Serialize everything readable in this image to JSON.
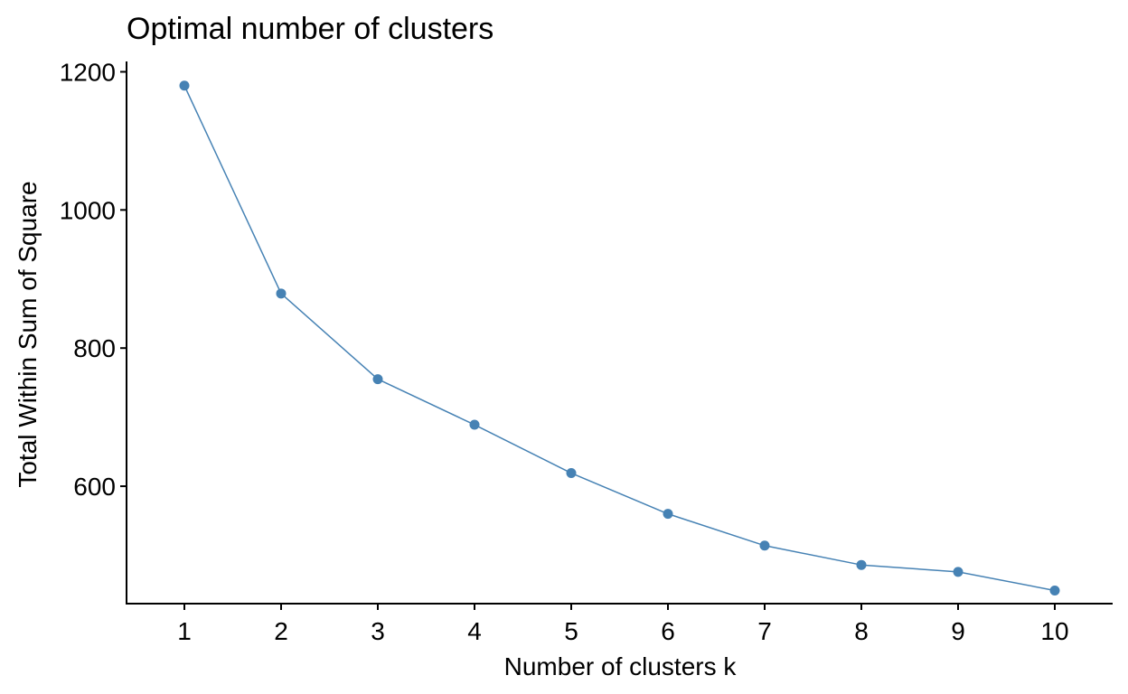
{
  "chart_data": {
    "type": "line",
    "title": "Optimal number of clusters",
    "xlabel": "Number of clusters k",
    "ylabel": "Total Within Sum of Square",
    "categories": [
      "1",
      "2",
      "3",
      "4",
      "5",
      "6",
      "7",
      "8",
      "9",
      "10"
    ],
    "series": [
      {
        "values": [
          1180,
          879,
          755,
          689,
          619,
          560,
          514,
          486,
          476,
          449
        ],
        "color": "#4682B4"
      }
    ],
    "ylim": [
      430,
      1215
    ],
    "yticks": [
      600,
      800,
      1000,
      1200
    ],
    "grid": false,
    "markers": true
  }
}
